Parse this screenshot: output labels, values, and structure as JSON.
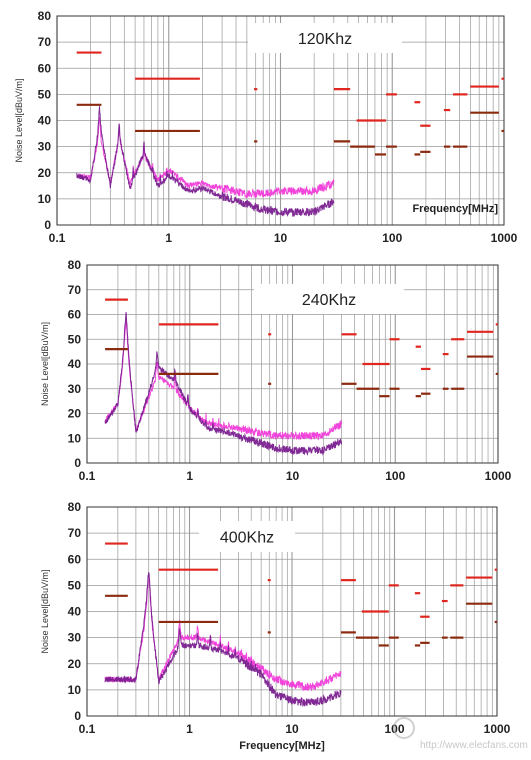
{
  "page": {
    "watermark_url": "http://www.elecfans.com"
  },
  "styles": {
    "grid_color": "#9a9a9a",
    "axis_color": "#333333",
    "limit_qp_color": "#e0261e",
    "limit_avg_color": "#8b2a0f",
    "trace_1_color": "#f03ad8",
    "trace_2_color": "#7a1f8f",
    "label_box_bg": "#ffffff"
  },
  "chart_data": [
    {
      "type": "line",
      "title_box": "120Khz",
      "ylabel": "Noise Level[dBuV/m]",
      "xlabel": "Frequency[MHz]",
      "xscale": "log",
      "xlim": [
        0.1,
        1000
      ],
      "ylim": [
        0,
        80
      ],
      "x_tick_labels": [
        "0.1",
        "1",
        "10",
        "100",
        "1000"
      ],
      "y_tick_labels": [
        "0",
        "10",
        "20",
        "30",
        "40",
        "50",
        "60",
        "70",
        "80"
      ],
      "grid": true,
      "switching_frequency_mhz": 0.12,
      "limit_lines": [
        {
          "x": [
            0.15,
            0.25
          ],
          "y": 66,
          "kind": "qp"
        },
        {
          "x": [
            0.15,
            0.25
          ],
          "y": 46,
          "kind": "avg"
        },
        {
          "x": [
            0.5,
            1.9
          ],
          "y": 56,
          "kind": "qp"
        },
        {
          "x": [
            0.5,
            1.9
          ],
          "y": 36,
          "kind": "avg"
        },
        {
          "x": [
            5.8,
            6.2
          ],
          "y": 52,
          "kind": "qp"
        },
        {
          "x": [
            5.8,
            6.2
          ],
          "y": 32,
          "kind": "avg"
        },
        {
          "x": [
            30,
            42
          ],
          "y": 52,
          "kind": "qp"
        },
        {
          "x": [
            30,
            42
          ],
          "y": 32,
          "kind": "avg"
        },
        {
          "x": [
            48,
            88
          ],
          "y": 40,
          "kind": "qp"
        },
        {
          "x": [
            42,
            70
          ],
          "y": 30,
          "kind": "avg"
        },
        {
          "x": [
            70,
            88
          ],
          "y": 27,
          "kind": "avg"
        },
        {
          "x": [
            88,
            110
          ],
          "y": 50,
          "kind": "qp"
        },
        {
          "x": [
            88,
            110
          ],
          "y": 30,
          "kind": "avg"
        },
        {
          "x": [
            158,
            178
          ],
          "y": 47,
          "kind": "qp"
        },
        {
          "x": [
            158,
            178
          ],
          "y": 27,
          "kind": "avg"
        },
        {
          "x": [
            178,
            220
          ],
          "y": 38,
          "kind": "qp"
        },
        {
          "x": [
            178,
            220
          ],
          "y": 28,
          "kind": "avg"
        },
        {
          "x": [
            290,
            330
          ],
          "y": 44,
          "kind": "qp"
        },
        {
          "x": [
            290,
            330
          ],
          "y": 30,
          "kind": "avg"
        },
        {
          "x": [
            350,
            470
          ],
          "y": 50,
          "kind": "qp"
        },
        {
          "x": [
            350,
            470
          ],
          "y": 30,
          "kind": "avg"
        },
        {
          "x": [
            500,
            900
          ],
          "y": 53,
          "kind": "qp"
        },
        {
          "x": [
            500,
            900
          ],
          "y": 43,
          "kind": "avg"
        },
        {
          "x": [
            950,
            1000
          ],
          "y": 56,
          "kind": "qp"
        },
        {
          "x": [
            950,
            1000
          ],
          "y": 36,
          "kind": "avg"
        }
      ],
      "series": [
        {
          "style": "trace_1",
          "x": [
            0.15,
            0.2,
            0.24,
            0.3,
            0.36,
            0.45,
            0.6,
            0.8,
            1,
            1.5,
            2,
            3,
            5,
            7,
            10,
            15,
            20,
            30
          ],
          "y": [
            19,
            18,
            35,
            16,
            33,
            16,
            27,
            17,
            21,
            15,
            16,
            14,
            12,
            12,
            13,
            13,
            13,
            16
          ]
        },
        {
          "style": "trace_2",
          "x": [
            0.15,
            0.2,
            0.24,
            0.3,
            0.36,
            0.45,
            0.6,
            0.8,
            1,
            1.5,
            2,
            3,
            5,
            7,
            10,
            15,
            20,
            30
          ],
          "y": [
            19,
            17,
            39,
            15,
            34,
            14,
            28,
            15,
            19,
            13,
            14,
            11,
            8,
            6,
            5,
            5,
            5,
            9
          ]
        }
      ]
    },
    {
      "type": "line",
      "title_box": "240Khz",
      "ylabel": "Noise Level[dBuV/m]",
      "xlabel": "",
      "xscale": "log",
      "xlim": [
        0.1,
        1000
      ],
      "ylim": [
        0,
        80
      ],
      "x_tick_labels": [
        "0.1",
        "1",
        "10",
        "100",
        "1000"
      ],
      "y_tick_labels": [
        "0",
        "10",
        "20",
        "30",
        "40",
        "50",
        "60",
        "70",
        "80"
      ],
      "grid": true,
      "switching_frequency_mhz": 0.24,
      "limit_lines": [
        {
          "x": [
            0.15,
            0.25
          ],
          "y": 66,
          "kind": "qp"
        },
        {
          "x": [
            0.15,
            0.25
          ],
          "y": 46,
          "kind": "avg"
        },
        {
          "x": [
            0.5,
            1.9
          ],
          "y": 56,
          "kind": "qp"
        },
        {
          "x": [
            0.5,
            1.9
          ],
          "y": 36,
          "kind": "avg"
        },
        {
          "x": [
            5.8,
            6.2
          ],
          "y": 52,
          "kind": "qp"
        },
        {
          "x": [
            5.8,
            6.2
          ],
          "y": 32,
          "kind": "avg"
        },
        {
          "x": [
            30,
            42
          ],
          "y": 52,
          "kind": "qp"
        },
        {
          "x": [
            30,
            42
          ],
          "y": 32,
          "kind": "avg"
        },
        {
          "x": [
            48,
            88
          ],
          "y": 40,
          "kind": "qp"
        },
        {
          "x": [
            42,
            70
          ],
          "y": 30,
          "kind": "avg"
        },
        {
          "x": [
            70,
            88
          ],
          "y": 27,
          "kind": "avg"
        },
        {
          "x": [
            88,
            110
          ],
          "y": 50,
          "kind": "qp"
        },
        {
          "x": [
            88,
            110
          ],
          "y": 30,
          "kind": "avg"
        },
        {
          "x": [
            158,
            178
          ],
          "y": 47,
          "kind": "qp"
        },
        {
          "x": [
            158,
            178
          ],
          "y": 27,
          "kind": "avg"
        },
        {
          "x": [
            178,
            220
          ],
          "y": 38,
          "kind": "qp"
        },
        {
          "x": [
            178,
            220
          ],
          "y": 28,
          "kind": "avg"
        },
        {
          "x": [
            290,
            330
          ],
          "y": 44,
          "kind": "qp"
        },
        {
          "x": [
            290,
            330
          ],
          "y": 30,
          "kind": "avg"
        },
        {
          "x": [
            350,
            470
          ],
          "y": 50,
          "kind": "qp"
        },
        {
          "x": [
            350,
            470
          ],
          "y": 30,
          "kind": "avg"
        },
        {
          "x": [
            500,
            900
          ],
          "y": 53,
          "kind": "qp"
        },
        {
          "x": [
            500,
            900
          ],
          "y": 43,
          "kind": "avg"
        },
        {
          "x": [
            950,
            1000
          ],
          "y": 56,
          "kind": "qp"
        },
        {
          "x": [
            950,
            1000
          ],
          "y": 36,
          "kind": "avg"
        }
      ],
      "series": [
        {
          "style": "trace_1",
          "x": [
            0.15,
            0.2,
            0.24,
            0.3,
            0.48,
            0.72,
            1,
            1.5,
            2,
            3,
            5,
            7,
            10,
            15,
            20,
            30
          ],
          "y": [
            17,
            24,
            50,
            13,
            35,
            30,
            22,
            16,
            15,
            14,
            12,
            11,
            11,
            11,
            11,
            16
          ]
        },
        {
          "style": "trace_2",
          "x": [
            0.15,
            0.2,
            0.24,
            0.3,
            0.48,
            0.72,
            1,
            1.5,
            2,
            3,
            5,
            7,
            10,
            15,
            20,
            30
          ],
          "y": [
            16,
            24,
            53,
            12,
            39,
            33,
            22,
            14,
            13,
            11,
            8,
            6,
            5,
            5,
            5,
            9
          ]
        }
      ]
    },
    {
      "type": "line",
      "title_box": "400Khz",
      "ylabel": "Noise Level[dBuV/m]",
      "xlabel": "Frequency[MHz]",
      "xscale": "log",
      "xlim": [
        0.1,
        1000
      ],
      "ylim": [
        0,
        80
      ],
      "x_tick_labels": [
        "0.1",
        "1",
        "10",
        "100",
        "1000"
      ],
      "y_tick_labels": [
        "0",
        "10",
        "20",
        "30",
        "40",
        "50",
        "60",
        "70",
        "80"
      ],
      "grid": true,
      "switching_frequency_mhz": 0.4,
      "limit_lines": [
        {
          "x": [
            0.15,
            0.25
          ],
          "y": 66,
          "kind": "qp"
        },
        {
          "x": [
            0.15,
            0.25
          ],
          "y": 46,
          "kind": "avg"
        },
        {
          "x": [
            0.5,
            1.9
          ],
          "y": 56,
          "kind": "qp"
        },
        {
          "x": [
            0.5,
            1.9
          ],
          "y": 36,
          "kind": "avg"
        },
        {
          "x": [
            5.8,
            6.2
          ],
          "y": 52,
          "kind": "qp"
        },
        {
          "x": [
            5.8,
            6.2
          ],
          "y": 32,
          "kind": "avg"
        },
        {
          "x": [
            30,
            42
          ],
          "y": 52,
          "kind": "qp"
        },
        {
          "x": [
            30,
            42
          ],
          "y": 32,
          "kind": "avg"
        },
        {
          "x": [
            48,
            88
          ],
          "y": 40,
          "kind": "qp"
        },
        {
          "x": [
            42,
            70
          ],
          "y": 30,
          "kind": "avg"
        },
        {
          "x": [
            70,
            88
          ],
          "y": 27,
          "kind": "avg"
        },
        {
          "x": [
            88,
            110
          ],
          "y": 50,
          "kind": "qp"
        },
        {
          "x": [
            88,
            110
          ],
          "y": 30,
          "kind": "avg"
        },
        {
          "x": [
            158,
            178
          ],
          "y": 47,
          "kind": "qp"
        },
        {
          "x": [
            158,
            178
          ],
          "y": 27,
          "kind": "avg"
        },
        {
          "x": [
            178,
            220
          ],
          "y": 38,
          "kind": "qp"
        },
        {
          "x": [
            178,
            220
          ],
          "y": 28,
          "kind": "avg"
        },
        {
          "x": [
            290,
            330
          ],
          "y": 44,
          "kind": "qp"
        },
        {
          "x": [
            290,
            330
          ],
          "y": 30,
          "kind": "avg"
        },
        {
          "x": [
            350,
            470
          ],
          "y": 50,
          "kind": "qp"
        },
        {
          "x": [
            350,
            470
          ],
          "y": 30,
          "kind": "avg"
        },
        {
          "x": [
            500,
            900
          ],
          "y": 53,
          "kind": "qp"
        },
        {
          "x": [
            500,
            900
          ],
          "y": 43,
          "kind": "avg"
        },
        {
          "x": [
            950,
            1000
          ],
          "y": 56,
          "kind": "qp"
        },
        {
          "x": [
            950,
            1000
          ],
          "y": 36,
          "kind": "avg"
        }
      ],
      "series": [
        {
          "style": "trace_1",
          "x": [
            0.15,
            0.3,
            0.4,
            0.5,
            0.8,
            1.2,
            1.6,
            2,
            3,
            5,
            7,
            10,
            15,
            20,
            30
          ],
          "y": [
            14,
            14,
            45,
            14,
            30,
            30,
            28,
            27,
            24,
            18,
            14,
            12,
            11,
            13,
            16
          ]
        },
        {
          "style": "trace_2",
          "x": [
            0.15,
            0.3,
            0.4,
            0.5,
            0.8,
            1.2,
            1.6,
            2,
            3,
            5,
            7,
            10,
            15,
            20,
            30
          ],
          "y": [
            14,
            14,
            48,
            13,
            27,
            27,
            26,
            25,
            22,
            16,
            8,
            6,
            5,
            6,
            9
          ]
        }
      ]
    }
  ]
}
